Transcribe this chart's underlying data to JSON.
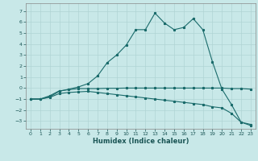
{
  "background_color": "#c8e8e8",
  "grid_color": "#b0d4d4",
  "line_color": "#1a6b6b",
  "xlabel": "Humidex (Indice chaleur)",
  "xlim": [
    -0.5,
    23.5
  ],
  "ylim": [
    -3.7,
    7.7
  ],
  "yticks": [
    -3,
    -2,
    -1,
    0,
    1,
    2,
    3,
    4,
    5,
    6,
    7
  ],
  "xticks": [
    0,
    1,
    2,
    3,
    4,
    5,
    6,
    7,
    8,
    9,
    10,
    11,
    12,
    13,
    14,
    15,
    16,
    17,
    18,
    19,
    20,
    21,
    22,
    23
  ],
  "curve1_x": [
    0,
    1,
    2,
    3,
    4,
    5,
    6,
    7,
    8,
    9,
    10,
    11,
    12,
    13,
    14,
    15,
    16,
    17,
    18,
    19,
    20,
    21,
    22,
    23
  ],
  "curve1_y": [
    -1,
    -1,
    -0.8,
    -0.3,
    -0.1,
    0.1,
    0.4,
    1.1,
    2.3,
    3.0,
    3.9,
    5.3,
    5.3,
    6.8,
    5.9,
    5.3,
    5.5,
    6.3,
    5.3,
    2.4,
    -0.1,
    -1.5,
    -3.1,
    -3.3
  ],
  "curve2_x": [
    0,
    1,
    2,
    3,
    4,
    5,
    6,
    7,
    8,
    9,
    10,
    11,
    12,
    13,
    14,
    15,
    16,
    17,
    18,
    19,
    20,
    21,
    22,
    23
  ],
  "curve2_y": [
    -1,
    -1,
    -0.7,
    -0.25,
    -0.15,
    -0.05,
    -0.05,
    -0.05,
    -0.02,
    -0.02,
    0.0,
    0.0,
    0.0,
    0.0,
    0.0,
    0.0,
    0.0,
    0.0,
    -0.0,
    -0.0,
    -0.0,
    -0.05,
    -0.05,
    -0.1
  ],
  "curve3_x": [
    0,
    1,
    2,
    3,
    4,
    5,
    6,
    7,
    8,
    9,
    10,
    11,
    12,
    13,
    14,
    15,
    16,
    17,
    18,
    19,
    20,
    21,
    22,
    23
  ],
  "curve3_y": [
    -1,
    -1,
    -0.85,
    -0.5,
    -0.4,
    -0.35,
    -0.3,
    -0.4,
    -0.5,
    -0.6,
    -0.7,
    -0.8,
    -0.9,
    -1.0,
    -1.1,
    -1.2,
    -1.3,
    -1.4,
    -1.5,
    -1.7,
    -1.8,
    -2.3,
    -3.1,
    -3.4
  ]
}
